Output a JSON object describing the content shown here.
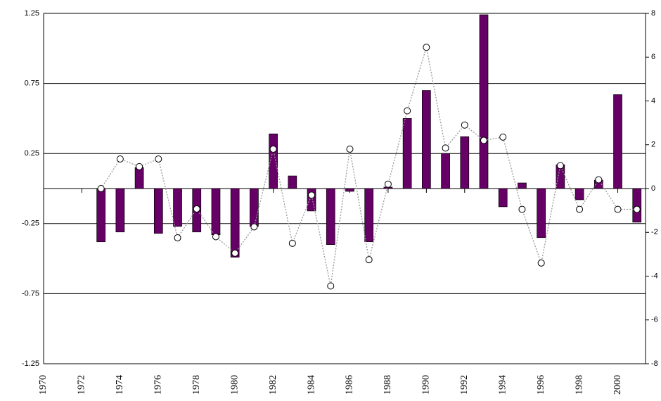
{
  "chart_data": {
    "type": "bar",
    "x": [
      1973,
      1974,
      1975,
      1976,
      1977,
      1978,
      1979,
      1980,
      1981,
      1982,
      1983,
      1984,
      1985,
      1986,
      1987,
      1988,
      1989,
      1990,
      1991,
      1992,
      1993,
      1994,
      1995,
      1996,
      1997,
      1998,
      1999,
      2000,
      2001
    ],
    "xlim": [
      1970,
      2001.45
    ],
    "xticks": [
      1970,
      1972,
      1974,
      1976,
      1978,
      1980,
      1982,
      1984,
      1986,
      1988,
      1990,
      1992,
      1994,
      1996,
      1998,
      2000
    ],
    "ylim": [
      -1.25,
      1.25
    ],
    "yticks": [
      -1.25,
      -0.75,
      -0.25,
      0.25,
      0.75,
      1.25
    ],
    "y2lim": [
      -8,
      8
    ],
    "y2ticks": [
      -8,
      -6,
      -4,
      -2,
      0,
      2,
      4,
      6,
      8
    ],
    "grid": true,
    "series": [
      {
        "type": "bar",
        "color": "#660066",
        "values": [
          -0.38,
          -0.31,
          0.15,
          -0.32,
          -0.27,
          -0.31,
          -0.33,
          -0.49,
          -0.27,
          0.39,
          0.09,
          -0.16,
          -0.4,
          -0.02,
          -0.38,
          0.01,
          0.5,
          0.7,
          0.25,
          0.37,
          1.24,
          -0.13,
          0.04,
          -0.35,
          0.17,
          -0.08,
          0.06,
          0.67,
          -0.24
        ]
      },
      {
        "type": "line",
        "axis": "y2",
        "color": "#999999",
        "values": [
          0,
          1.35,
          1.0,
          1.35,
          -2.25,
          -0.93,
          -2.2,
          -2.95,
          -1.75,
          1.8,
          -2.5,
          -0.3,
          -4.45,
          1.8,
          -3.25,
          0.2,
          3.55,
          6.45,
          1.85,
          2.9,
          2.2,
          2.35,
          -0.95,
          -3.4,
          1.05,
          -0.95,
          0.4,
          -0.95,
          -0.95
        ]
      }
    ]
  }
}
